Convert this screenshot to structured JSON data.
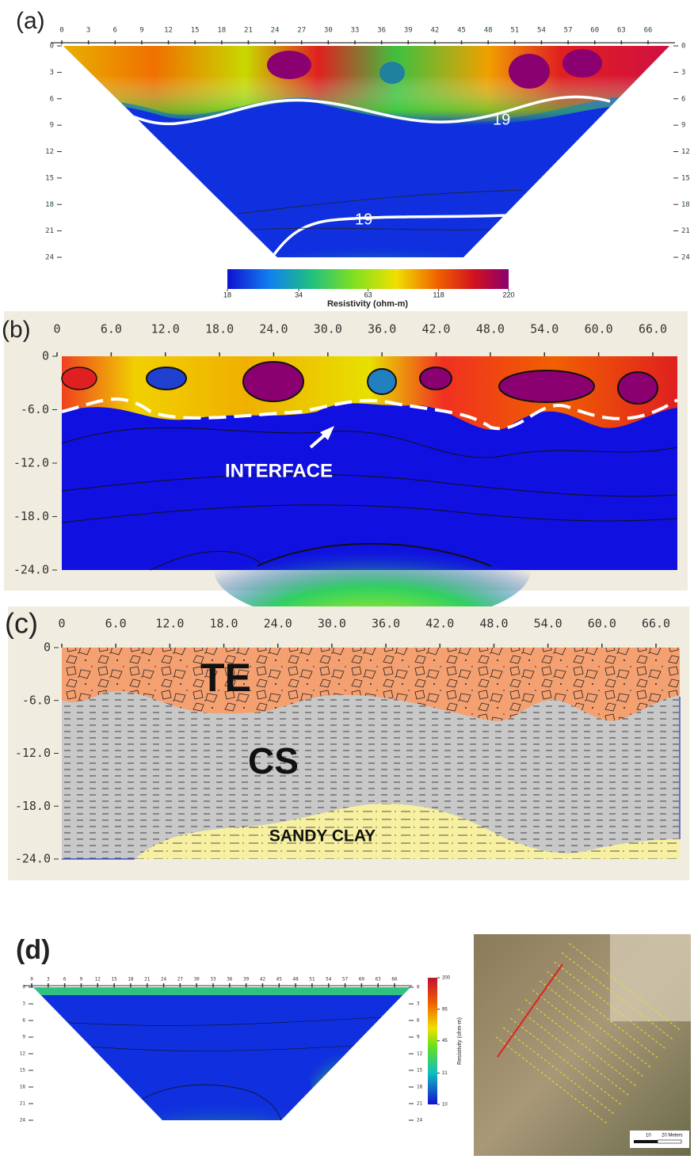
{
  "panels": {
    "a": {
      "label": "(a)",
      "xticks": [
        0,
        3,
        6,
        9,
        12,
        15,
        18,
        21,
        24,
        27,
        30,
        33,
        36,
        39,
        42,
        45,
        48,
        51,
        54,
        57,
        60,
        63,
        66
      ],
      "yticks": [
        0,
        3,
        6,
        9,
        12,
        15,
        18,
        21,
        24
      ],
      "contour_labels": [
        "19",
        "19"
      ],
      "colorbar": {
        "ticks": [
          18,
          34,
          63,
          118,
          220
        ],
        "log": true,
        "label": "Resistivity (ohm-m)"
      }
    },
    "b": {
      "label": "(b)",
      "xticks": [
        0,
        {
          "value": 6,
          "label": "6.0"
        },
        {
          "value": 12,
          "label": "12.0"
        },
        {
          "value": 18,
          "label": "18.0"
        },
        {
          "value": 24,
          "label": "24.0"
        },
        {
          "value": 30,
          "label": "30.0"
        },
        {
          "value": 36,
          "label": "36.0"
        },
        {
          "value": 42,
          "label": "42.0"
        },
        {
          "value": 48,
          "label": "48.0"
        },
        {
          "value": 54,
          "label": "54.0"
        },
        {
          "value": 60,
          "label": "60.0"
        },
        {
          "value": 66,
          "label": "66.0"
        }
      ],
      "yticks": [
        0,
        {
          "value": -6,
          "label": "-6.0"
        },
        {
          "value": -12,
          "label": "-12.0"
        },
        {
          "value": -18,
          "label": "-18.0"
        },
        {
          "value": -24,
          "label": "-24.0"
        }
      ],
      "annotation": "INTERFACE"
    },
    "c": {
      "label": "(c)",
      "xticks": [
        0,
        {
          "value": 6,
          "label": "6.0"
        },
        {
          "value": 12,
          "label": "12.0"
        },
        {
          "value": 18,
          "label": "18.0"
        },
        {
          "value": 24,
          "label": "24.0"
        },
        {
          "value": 30,
          "label": "30.0"
        },
        {
          "value": 36,
          "label": "36.0"
        },
        {
          "value": 42,
          "label": "42.0"
        },
        {
          "value": 48,
          "label": "48.0"
        },
        {
          "value": 54,
          "label": "54.0"
        },
        {
          "value": 60,
          "label": "60.0"
        },
        {
          "value": 66,
          "label": "66.0"
        }
      ],
      "yticks": [
        0,
        {
          "value": -6,
          "label": "-6.0"
        },
        {
          "value": -12,
          "label": "-12.0"
        },
        {
          "value": -18,
          "label": "-18.0"
        },
        {
          "value": -24,
          "label": "-24.0"
        }
      ],
      "layers": [
        "TE",
        "CS",
        "SANDY CLAY"
      ]
    },
    "d": {
      "label": "(d)",
      "xticks": [
        0,
        3,
        6,
        9,
        12,
        15,
        18,
        21,
        24,
        27,
        30,
        33,
        36,
        39,
        42,
        45,
        48,
        51,
        54,
        57,
        60,
        63,
        66
      ],
      "yticks": [
        0,
        3,
        6,
        9,
        12,
        15,
        18,
        21,
        24
      ],
      "colorbar": {
        "ticks": [
          200,
          95,
          45,
          21,
          10
        ],
        "log": true,
        "label": "Resistivity (ohm-m)"
      },
      "map": {
        "scale_labels": [
          "10",
          "20 Meters"
        ]
      }
    }
  }
}
